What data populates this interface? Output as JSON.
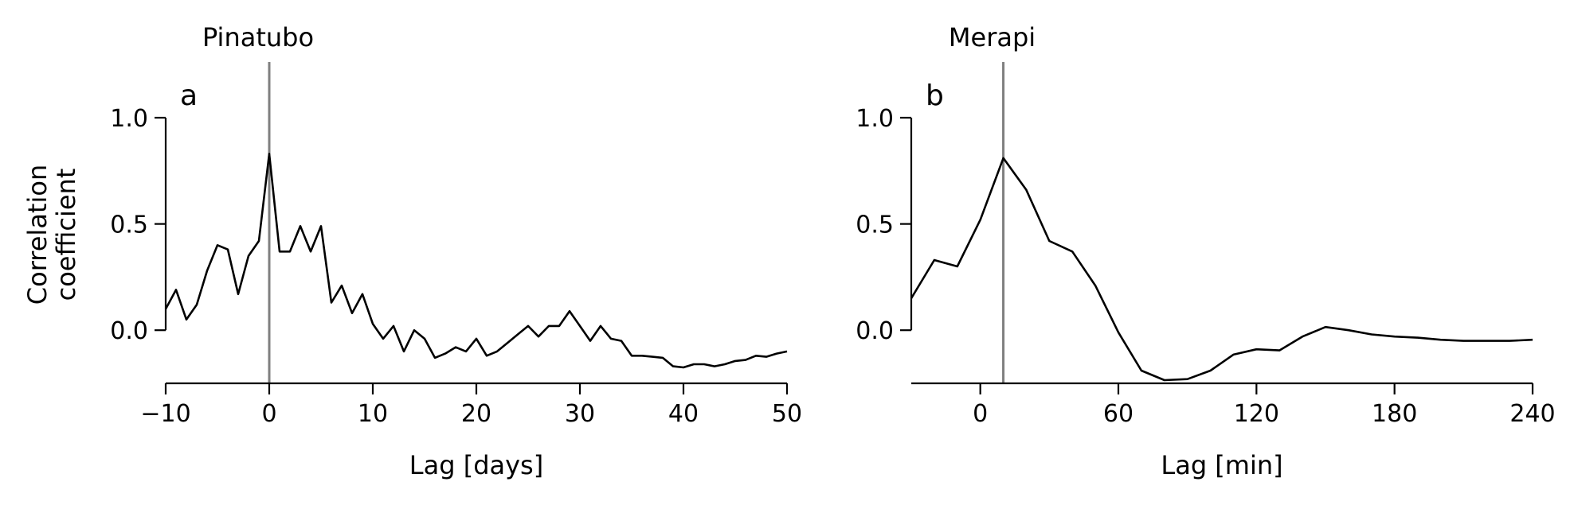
{
  "chart_data": [
    {
      "type": "line",
      "title": "Pinatubo",
      "panel_label": "a",
      "xlabel": "Lag [days]",
      "ylabel": [
        "Correlation",
        "coefficient"
      ],
      "xlim": [
        -10,
        50
      ],
      "ylim": [
        -0.25,
        1.0
      ],
      "xticks": [
        -10,
        0,
        10,
        20,
        30,
        40,
        50
      ],
      "xtick_labels": [
        "−10",
        "0",
        "10",
        "20",
        "30",
        "40",
        "50"
      ],
      "yticks": [
        0.0,
        0.5,
        1.0
      ],
      "ytick_labels": [
        "0.0",
        "0.5",
        "1.0"
      ],
      "reference_line_x": 0,
      "grid": false,
      "series": [
        {
          "x": [
            -10,
            -9,
            -8,
            -7,
            -6,
            -5,
            -4,
            -3,
            -2,
            -1,
            0,
            1,
            2,
            3,
            4,
            5,
            6,
            7,
            8,
            9,
            10,
            11,
            12,
            13,
            14,
            15,
            16,
            17,
            18,
            19,
            20,
            21,
            22,
            23,
            24,
            25,
            26,
            27,
            28,
            29,
            30,
            31,
            32,
            33,
            34,
            35,
            36,
            37,
            38,
            39,
            40,
            41,
            42,
            43,
            44,
            45,
            46,
            47,
            48,
            49,
            50
          ],
          "y": [
            0.1,
            0.19,
            0.05,
            0.12,
            0.28,
            0.4,
            0.38,
            0.17,
            0.35,
            0.42,
            0.83,
            0.37,
            0.37,
            0.49,
            0.37,
            0.49,
            0.13,
            0.21,
            0.08,
            0.17,
            0.03,
            -0.04,
            0.02,
            -0.1,
            0.0,
            -0.04,
            -0.13,
            -0.11,
            -0.08,
            -0.1,
            -0.04,
            -0.12,
            -0.1,
            -0.06,
            -0.02,
            0.02,
            -0.03,
            0.02,
            0.02,
            0.09,
            0.02,
            -0.05,
            0.02,
            -0.04,
            -0.05,
            -0.12,
            -0.12,
            -0.125,
            -0.13,
            -0.17,
            -0.175,
            -0.16,
            -0.16,
            -0.17,
            -0.16,
            -0.145,
            -0.14,
            -0.12,
            -0.125,
            -0.11,
            -0.1
          ]
        }
      ]
    },
    {
      "type": "line",
      "title": "Merapi",
      "panel_label": "b",
      "xlabel": "Lag [min]",
      "xlim": [
        -30,
        240
      ],
      "ylim": [
        -0.25,
        1.0
      ],
      "xticks": [
        0,
        60,
        120,
        180,
        240
      ],
      "xtick_labels": [
        "0",
        "60",
        "120",
        "180",
        "240"
      ],
      "yticks": [
        0.0,
        0.5,
        1.0
      ],
      "ytick_labels": [
        "0.0",
        "0.5",
        "1.0"
      ],
      "reference_line_x": 10,
      "grid": false,
      "series": [
        {
          "x": [
            -30,
            -20,
            -10,
            0,
            10,
            20,
            30,
            40,
            50,
            60,
            70,
            80,
            90,
            100,
            110,
            120,
            130,
            140,
            150,
            160,
            170,
            180,
            190,
            200,
            210,
            220,
            230,
            240
          ],
          "y": [
            0.15,
            0.33,
            0.3,
            0.52,
            0.81,
            0.66,
            0.42,
            0.37,
            0.21,
            -0.01,
            -0.19,
            -0.235,
            -0.23,
            -0.19,
            -0.115,
            -0.09,
            -0.095,
            -0.03,
            0.015,
            0.0,
            -0.02,
            -0.03,
            -0.035,
            -0.045,
            -0.05,
            -0.05,
            -0.05,
            -0.045
          ]
        }
      ]
    }
  ]
}
